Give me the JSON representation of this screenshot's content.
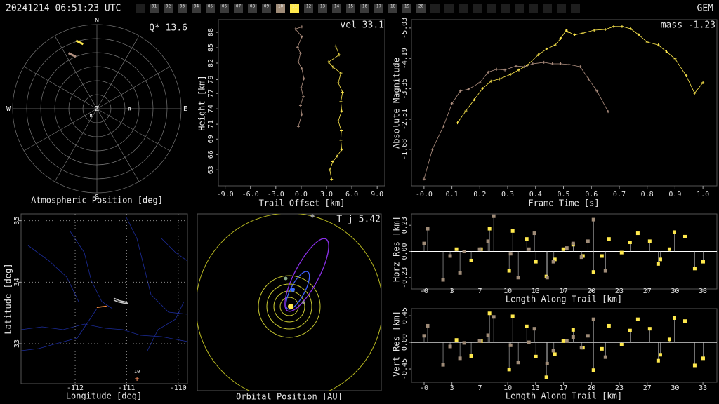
{
  "header": {
    "timestamp": "20241214 06:51:23 UTC",
    "shower": "GEM",
    "frames": [
      "01",
      "02",
      "03",
      "04",
      "05",
      "06",
      "07",
      "08",
      "09",
      "10",
      "11",
      "12",
      "13",
      "14",
      "15",
      "16",
      "17",
      "18",
      "19",
      "20"
    ],
    "frame_colors": [
      "#3a3a3a",
      "#3a3a3a",
      "#3a3a3a",
      "#3a3a3a",
      "#3a3a3a",
      "#3a3a3a",
      "#3a3a3a",
      "#3a3a3a",
      "#3a3a3a",
      "#a08c78",
      "#ffe94d",
      "#3a3a3a",
      "#3a3a3a",
      "#3a3a3a",
      "#3a3a3a",
      "#3a3a3a",
      "#3a3a3a",
      "#3a3a3a",
      "#3a3a3a",
      "#3a3a3a"
    ]
  },
  "chart_data": [
    {
      "type": "polar",
      "title": "Atmospheric Position [deg]",
      "annotation": "Q* 13.6",
      "directions": [
        "N",
        "E",
        "S",
        "W"
      ],
      "zenith_label": "Z",
      "rings": [
        0,
        15,
        30,
        45,
        60,
        75
      ],
      "spokes": [
        0,
        30,
        60,
        90,
        120,
        150,
        180,
        210,
        240,
        270,
        300,
        330
      ],
      "markers": [
        {
          "label": "R",
          "az": 91,
          "el": 55
        },
        {
          "label": "M",
          "az": 219,
          "el": 80
        }
      ],
      "series": [
        {
          "color": "#ffe94d",
          "az": [
            343,
            348
          ],
          "el": [
            13.9,
            19.4
          ]
        },
        {
          "color": "#b09080",
          "az": [
            333,
            338
          ],
          "el": [
            23.3,
            30
          ]
        }
      ]
    },
    {
      "type": "line",
      "x_label": "Trail Offset [km]",
      "y_label": "Height [km]",
      "annotation": "vel 33.1",
      "xlim": [
        -9.8,
        9.9
      ],
      "xticks": [
        {
          "value": -9,
          "label": "-9.0"
        },
        {
          "value": -6,
          "label": "-6.0"
        },
        {
          "value": -3,
          "label": "-3.0"
        },
        {
          "value": 0,
          "label": "0.0"
        },
        {
          "value": 3,
          "label": "3.0"
        },
        {
          "value": 6,
          "label": "6.0"
        },
        {
          "value": 9,
          "label": "9.0"
        }
      ],
      "ylim": [
        60.1,
        90.3
      ],
      "yticks": [
        63,
        {
          "value": 65.8,
          "label": "66"
        },
        {
          "value": 68.6,
          "label": "69"
        },
        {
          "value": 71.3,
          "label": "71"
        },
        {
          "value": 74.1,
          "label": "74"
        },
        {
          "value": 76.9,
          "label": "77"
        },
        {
          "value": 79.4,
          "label": "79"
        },
        {
          "value": 82.4,
          "label": "82"
        },
        {
          "value": 85.2,
          "label": "85"
        },
        88
      ],
      "series": [
        {
          "color": "#ffe94d",
          "x": [
            3.6,
            3.4,
            3.75,
            4.25,
            4.8,
            4.7,
            4.75,
            4.4,
            4.8,
            4.7,
            4.9,
            4.4,
            4.7,
            3.75,
            3.25,
            4.5,
            4.1
          ],
          "values": [
            61.3,
            63,
            64.5,
            65.5,
            66.7,
            68.4,
            70.1,
            71.9,
            73.7,
            75.4,
            77.1,
            78.8,
            80.6,
            81.7,
            82.6,
            83.9,
            85.5
          ]
        },
        {
          "color": "#b09080",
          "x": [
            -0.33,
            0.08,
            -0.08,
            0.25,
            0,
            0.33,
            0.08,
            -0.33,
            -0.08,
            -0.42,
            0.08,
            -0.67,
            0.08
          ],
          "values": [
            70.9,
            73.1,
            74.7,
            76.3,
            77.9,
            79.6,
            81.4,
            82.6,
            84.2,
            85.3,
            87.2,
            88.6,
            89
          ]
        }
      ]
    },
    {
      "type": "line",
      "x_label": "Frame Time [s]",
      "y_label": "Absolute Magnitude",
      "annotation": "mass -1.23",
      "xlim": [
        -0.045,
        1.05
      ],
      "xticks": [
        {
          "value": 0,
          "label": "-0.0"
        },
        0.1,
        0.2,
        0.3,
        0.4,
        0.5,
        0.6,
        0.7,
        0.8,
        0.9,
        {
          "value": 1,
          "label": "1.0"
        }
      ],
      "ylim": [
        -0.67,
        -5.26
      ],
      "yticks": [
        -5.03,
        -4.19,
        -3.35,
        -2.51,
        -1.68
      ],
      "series": [
        {
          "color": "#ffe94d",
          "x": [
            0.12,
            0.15,
            0.18,
            0.21,
            0.24,
            0.27,
            0.31,
            0.34,
            0.37,
            0.41,
            0.44,
            0.47,
            0.49,
            0.51,
            0.52,
            0.54,
            0.57,
            0.61,
            0.65,
            0.68,
            0.71,
            0.74,
            0.77,
            0.8,
            0.84,
            0.87,
            0.9,
            0.94,
            0.97,
            1
          ],
          "values": [
            -2.41,
            -2.74,
            -3.05,
            -3.36,
            -3.56,
            -3.62,
            -3.75,
            -3.87,
            -4,
            -4.29,
            -4.45,
            -4.56,
            -4.74,
            -4.97,
            -4.91,
            -4.84,
            -4.89,
            -4.97,
            -4.99,
            -5.07,
            -5.07,
            -5.01,
            -4.84,
            -4.64,
            -4.56,
            -4.37,
            -4.18,
            -3.71,
            -3.23,
            -3.52
          ]
        },
        {
          "color": "#b09080",
          "x": [
            0,
            0.03,
            0.07,
            0.1,
            0.13,
            0.16,
            0.2,
            0.23,
            0.26,
            0.29,
            0.33,
            0.36,
            0.39,
            0.43,
            0.46,
            0.49,
            0.52,
            0.56,
            0.59,
            0.62,
            0.66
          ],
          "values": [
            -0.86,
            -1.68,
            -2.32,
            -2.94,
            -3.29,
            -3.34,
            -3.52,
            -3.81,
            -3.89,
            -3.87,
            -3.98,
            -3.96,
            -4.04,
            -4.08,
            -4.04,
            -4.04,
            -4.02,
            -3.96,
            -3.62,
            -3.29,
            -2.72
          ]
        }
      ]
    },
    {
      "type": "map",
      "x_label": "Longitude [deg]",
      "y_label": "Latitude [deg]",
      "xlim": [
        -113.05,
        -109.82
      ],
      "xticks": [
        -112,
        -111,
        -110
      ],
      "ylim": [
        32.35,
        35.11
      ],
      "yticks": [
        33,
        34,
        35
      ],
      "grid": true,
      "series": [
        {
          "color": "#ff9040",
          "x": [
            -111.58,
            -111.39
          ],
          "values": [
            33.59,
            33.61
          ]
        },
        {
          "color": "#c8c8c8",
          "x": [
            -111.25,
            -111.14,
            -111.03,
            -110.97,
            -111.06,
            -111.17,
            -111.25
          ],
          "values": [
            33.74,
            33.7,
            33.68,
            33.65,
            33.66,
            33.68,
            33.71
          ]
        }
      ],
      "station": {
        "label": "10",
        "x": -110.8,
        "y": 32.43
      }
    },
    {
      "type": "orbit",
      "title": "Orbital Position [AU]",
      "annotation": "T_j 5.42"
    },
    {
      "type": "stem",
      "x_label": "Length Along Trail [km]",
      "y_label": "Horz Res [km]",
      "xlim": [
        -1.51,
        35
      ],
      "xticks": [
        {
          "value": 0,
          "label": "-0"
        },
        {
          "value": 3.33,
          "label": "3"
        },
        {
          "value": 6.67,
          "label": "7"
        },
        10,
        {
          "value": 13.33,
          "label": "13"
        },
        {
          "value": 16.67,
          "label": "17"
        },
        20,
        {
          "value": 23.33,
          "label": "23"
        },
        {
          "value": 26.67,
          "label": "27"
        },
        30,
        {
          "value": 33.33,
          "label": "33"
        }
      ],
      "ylim": [
        -0.33,
        0.33
      ],
      "yticks": [
        -0.23,
        {
          "value": 0,
          "label": "0.00"
        },
        0.23
      ],
      "series": [
        {
          "color": "#ffe94d",
          "x": [
            3.87,
            5.63,
            6.81,
            7.82,
            10.17,
            10.59,
            12.27,
            13.36,
            14.62,
            15.63,
            16.64,
            17.82,
            18.99,
            20.25,
            21.26,
            22.1,
            23.61,
            24.62,
            25.55,
            26.97,
            27.98,
            28.24,
            29.33,
            29.92,
            31.18,
            32.35,
            33.36
          ],
          "values": [
            0.02,
            -0.08,
            0.02,
            0.2,
            -0.17,
            0.18,
            0.11,
            -0.09,
            -0.22,
            -0.07,
            0.02,
            0.06,
            -0.04,
            -0.18,
            -0.04,
            0.11,
            -0.01,
            0.08,
            0.16,
            0.09,
            -0.11,
            -0.07,
            0.02,
            0.17,
            0.13,
            -0.15,
            -0.09
          ]
        },
        {
          "color": "#a08c78",
          "x": [
            0,
            0.42,
            2.27,
            3.11,
            4.29,
            4.79,
            6.64,
            7.65,
            8.32,
            10.34,
            11.26,
            12.52,
            13.19,
            14.71,
            15.46,
            17.06,
            17.82,
            18.82,
            19.58,
            20.25,
            21.68
          ],
          "values": [
            0.07,
            0.2,
            -0.25,
            -0.04,
            -0.19,
            0,
            0.02,
            0.09,
            0.31,
            -0.02,
            -0.23,
            0.02,
            0.16,
            -0.23,
            -0.09,
            0.03,
            0.07,
            -0.05,
            0.09,
            0.28,
            -0.17
          ]
        }
      ]
    },
    {
      "type": "stem",
      "x_label": "Length Along Trail [km]",
      "y_label": "Vert Res [km]",
      "xlim": [
        -1.51,
        35
      ],
      "xticks": [
        {
          "value": 0,
          "label": "-0"
        },
        {
          "value": 3.33,
          "label": "3"
        },
        {
          "value": 6.67,
          "label": "7"
        },
        10,
        {
          "value": 13.33,
          "label": "13"
        },
        {
          "value": 16.67,
          "label": "17"
        },
        20,
        {
          "value": 23.33,
          "label": "23"
        },
        {
          "value": 26.67,
          "label": "27"
        },
        30,
        {
          "value": 33.33,
          "label": "33"
        }
      ],
      "ylim": [
        -0.675,
        0.57
      ],
      "yticks": [
        -0.45,
        {
          "value": 0,
          "label": "0.00"
        },
        0.45
      ],
      "series": [
        {
          "color": "#ffe94d",
          "x": [
            3.87,
            5.63,
            6.81,
            7.82,
            10.17,
            10.59,
            12.27,
            13.36,
            14.62,
            15.63,
            16.64,
            17.82,
            18.99,
            20.25,
            21.26,
            22.1,
            23.61,
            24.62,
            25.55,
            26.97,
            27.98,
            28.24,
            29.33,
            29.92,
            31.18,
            32.35,
            33.36
          ],
          "values": [
            0.04,
            -0.23,
            0.02,
            0.49,
            -0.46,
            0.44,
            0.27,
            -0.24,
            -0.59,
            -0.2,
            0.02,
            0.21,
            -0.09,
            -0.47,
            -0.11,
            0.28,
            -0.04,
            0.2,
            0.39,
            0.23,
            -0.31,
            -0.21,
            0.05,
            0.41,
            0.36,
            -0.39,
            -0.27
          ]
        },
        {
          "color": "#a08c78",
          "x": [
            0,
            0.42,
            2.27,
            3.11,
            4.29,
            4.79,
            6.64,
            7.65,
            8.32,
            10.34,
            11.26,
            12.52,
            13.19,
            14.71,
            15.46,
            17.06,
            17.82,
            18.82,
            19.58,
            20.25,
            21.68
          ],
          "values": [
            0.11,
            0.28,
            -0.38,
            -0.07,
            -0.27,
            -0.01,
            0.02,
            0.12,
            0.43,
            -0.05,
            -0.34,
            0,
            0.23,
            -0.36,
            -0.14,
            0.02,
            0.09,
            -0.09,
            0.11,
            0.39,
            -0.25
          ]
        }
      ]
    }
  ]
}
